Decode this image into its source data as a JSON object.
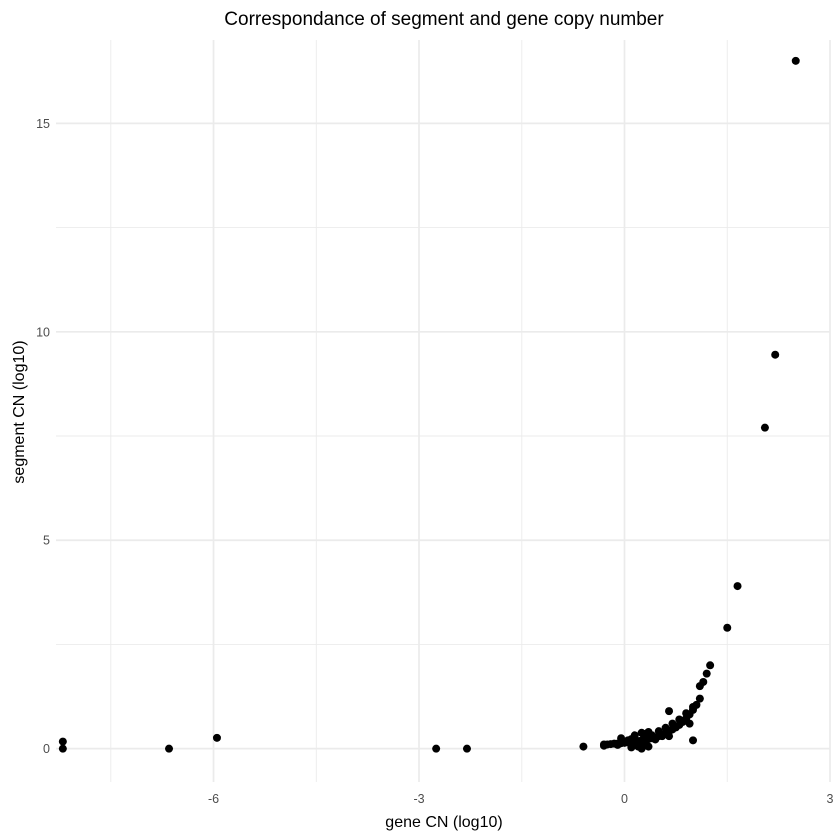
{
  "chart_data": {
    "type": "scatter",
    "title": "Correspondance of segment and gene copy number",
    "xlabel": "gene CN (log10)",
    "ylabel": "segment CN (log10)",
    "xlim": [
      -8.3,
      3.0
    ],
    "ylim": [
      -0.8,
      17.0
    ],
    "x_ticks": [
      -6,
      -3,
      0,
      3
    ],
    "x_tick_labels": [
      "-6",
      "-3",
      "0",
      "3"
    ],
    "x_minor_ticks": [
      -7.5,
      -4.5,
      -1.5,
      1.5
    ],
    "y_ticks": [
      0,
      5,
      10,
      15
    ],
    "y_tick_labels": [
      "0",
      "5",
      "10",
      "15"
    ],
    "y_minor_ticks": [
      2.5,
      7.5,
      12.5
    ],
    "grid": true,
    "legend": "none",
    "point_color": "#000000",
    "grid_color": "#ebebeb",
    "series": [
      {
        "points": [
          [
            -8.2,
            0.17
          ],
          [
            -8.2,
            0.0
          ],
          [
            -6.65,
            0.0
          ],
          [
            -5.95,
            0.26
          ],
          [
            -2.75,
            0.0
          ],
          [
            -2.3,
            0.0
          ],
          [
            -0.6,
            0.05
          ],
          [
            -0.3,
            0.1
          ],
          [
            -0.25,
            0.1
          ],
          [
            -0.2,
            0.11
          ],
          [
            -0.15,
            0.12
          ],
          [
            -0.1,
            0.12
          ],
          [
            -0.05,
            0.13
          ],
          [
            0.0,
            0.14
          ],
          [
            0.05,
            0.15
          ],
          [
            0.1,
            0.16
          ],
          [
            0.15,
            0.17
          ],
          [
            0.2,
            0.18
          ],
          [
            0.25,
            0.2
          ],
          [
            0.3,
            0.21
          ],
          [
            0.35,
            0.23
          ],
          [
            0.4,
            0.25
          ],
          [
            0.45,
            0.27
          ],
          [
            0.5,
            0.3
          ],
          [
            0.55,
            0.33
          ],
          [
            0.6,
            0.37
          ],
          [
            0.65,
            0.41
          ],
          [
            0.7,
            0.46
          ],
          [
            0.75,
            0.51
          ],
          [
            0.8,
            0.57
          ],
          [
            0.85,
            0.64
          ],
          [
            0.9,
            0.72
          ],
          [
            0.95,
            0.82
          ],
          [
            1.0,
            0.93
          ],
          [
            1.05,
            1.05
          ],
          [
            1.1,
            1.2
          ],
          [
            0.3,
            0.35
          ],
          [
            0.4,
            0.32
          ],
          [
            0.5,
            0.42
          ],
          [
            0.6,
            0.5
          ],
          [
            0.7,
            0.6
          ],
          [
            0.8,
            0.7
          ],
          [
            0.9,
            0.85
          ],
          [
            1.0,
            1.0
          ],
          [
            0.15,
            0.25
          ],
          [
            0.35,
            0.4
          ],
          [
            -0.3,
            0.07
          ],
          [
            -0.1,
            0.09
          ],
          [
            0.1,
            0.12
          ],
          [
            0.2,
            0.14
          ],
          [
            0.3,
            0.17
          ],
          [
            0.45,
            0.22
          ],
          [
            -0.05,
            0.25
          ],
          [
            0.15,
            0.32
          ],
          [
            0.25,
            0.38
          ],
          [
            0.1,
            0.23
          ],
          [
            0.05,
            0.2
          ],
          [
            0.3,
            0.12
          ],
          [
            0.35,
            0.05
          ],
          [
            0.55,
            0.3
          ],
          [
            0.65,
            0.9
          ],
          [
            0.65,
            0.3
          ],
          [
            0.95,
            0.6
          ],
          [
            1.0,
            0.2
          ],
          [
            0.2,
            0.05
          ],
          [
            0.25,
            0.0
          ],
          [
            0.1,
            0.03
          ],
          [
            1.1,
            1.5
          ],
          [
            1.15,
            1.6
          ],
          [
            1.2,
            1.8
          ],
          [
            1.25,
            2.0
          ],
          [
            1.5,
            2.9
          ],
          [
            1.65,
            3.9
          ],
          [
            2.05,
            7.7
          ],
          [
            2.2,
            9.45
          ],
          [
            2.5,
            16.5
          ]
        ]
      }
    ]
  }
}
